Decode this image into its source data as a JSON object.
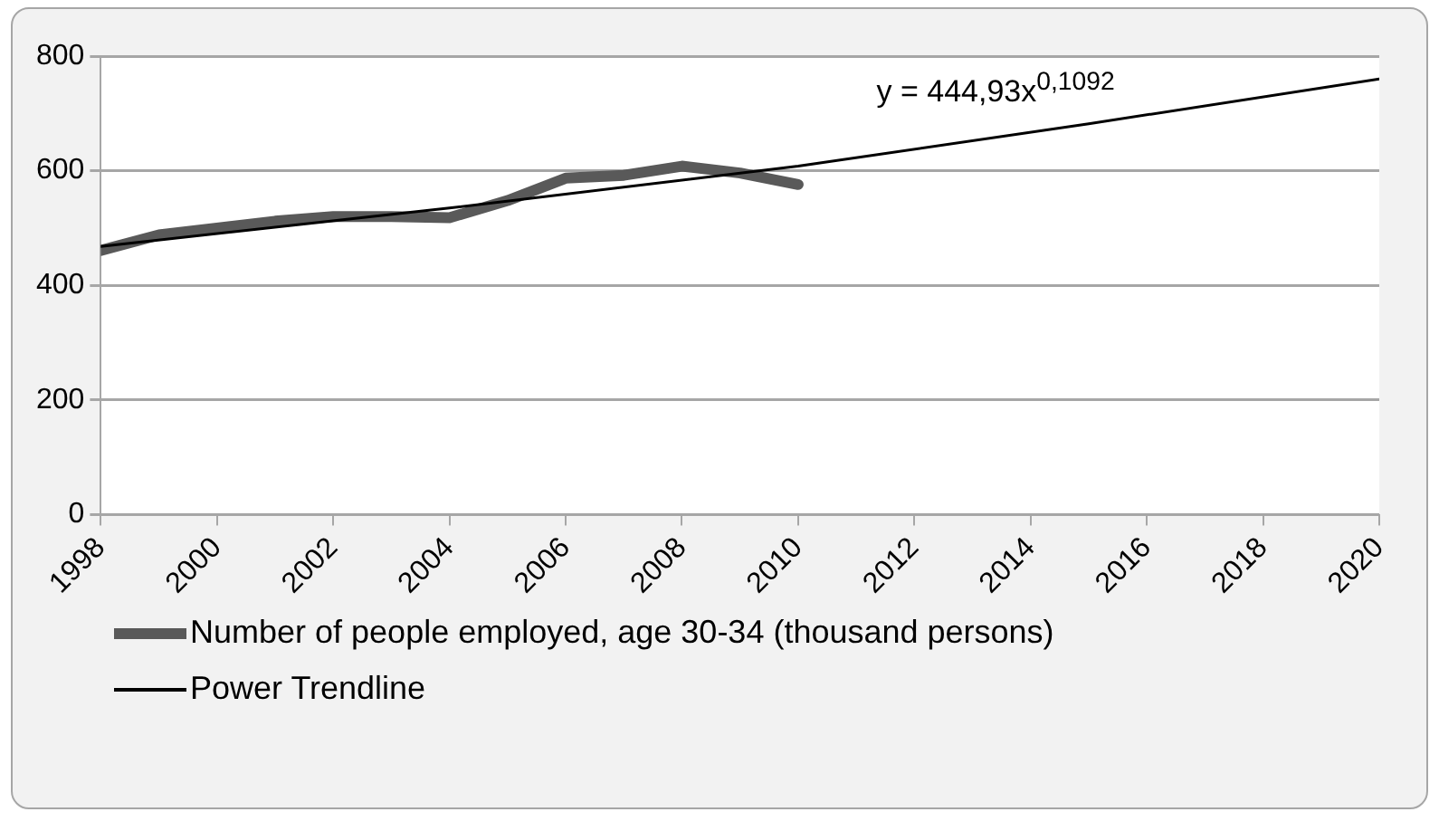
{
  "chart_data": {
    "type": "line",
    "x": [
      1998,
      1999,
      2000,
      2001,
      2002,
      2003,
      2004,
      2005,
      2006,
      2007,
      2008,
      2009,
      2010
    ],
    "series": [
      {
        "name": "Number of people employed, age 30-34 (thousand persons)",
        "color": "#595959",
        "values": [
          461,
          488,
          500,
          512,
          520,
          520,
          518,
          548,
          587,
          592,
          608,
          596,
          576
        ]
      },
      {
        "name": "Power Trendline",
        "color": "#000000",
        "x": [
          1998,
          2004,
          2010,
          2015,
          2020
        ],
        "values": [
          468,
          535,
          608,
          682,
          760
        ]
      }
    ],
    "annotations": [
      "y = 444,93x$^{0,1092}$"
    ],
    "xlim": [
      1998,
      2020
    ],
    "xticks": [
      1998,
      2000,
      2002,
      2004,
      2006,
      2008,
      2010,
      2012,
      2014,
      2016,
      2018,
      2020
    ],
    "ylim": [
      0,
      800
    ],
    "yticks": [
      0,
      200,
      400,
      600,
      800
    ],
    "grid": "y",
    "legend": "bottom",
    "marker": "none",
    "line_style": "solid"
  }
}
